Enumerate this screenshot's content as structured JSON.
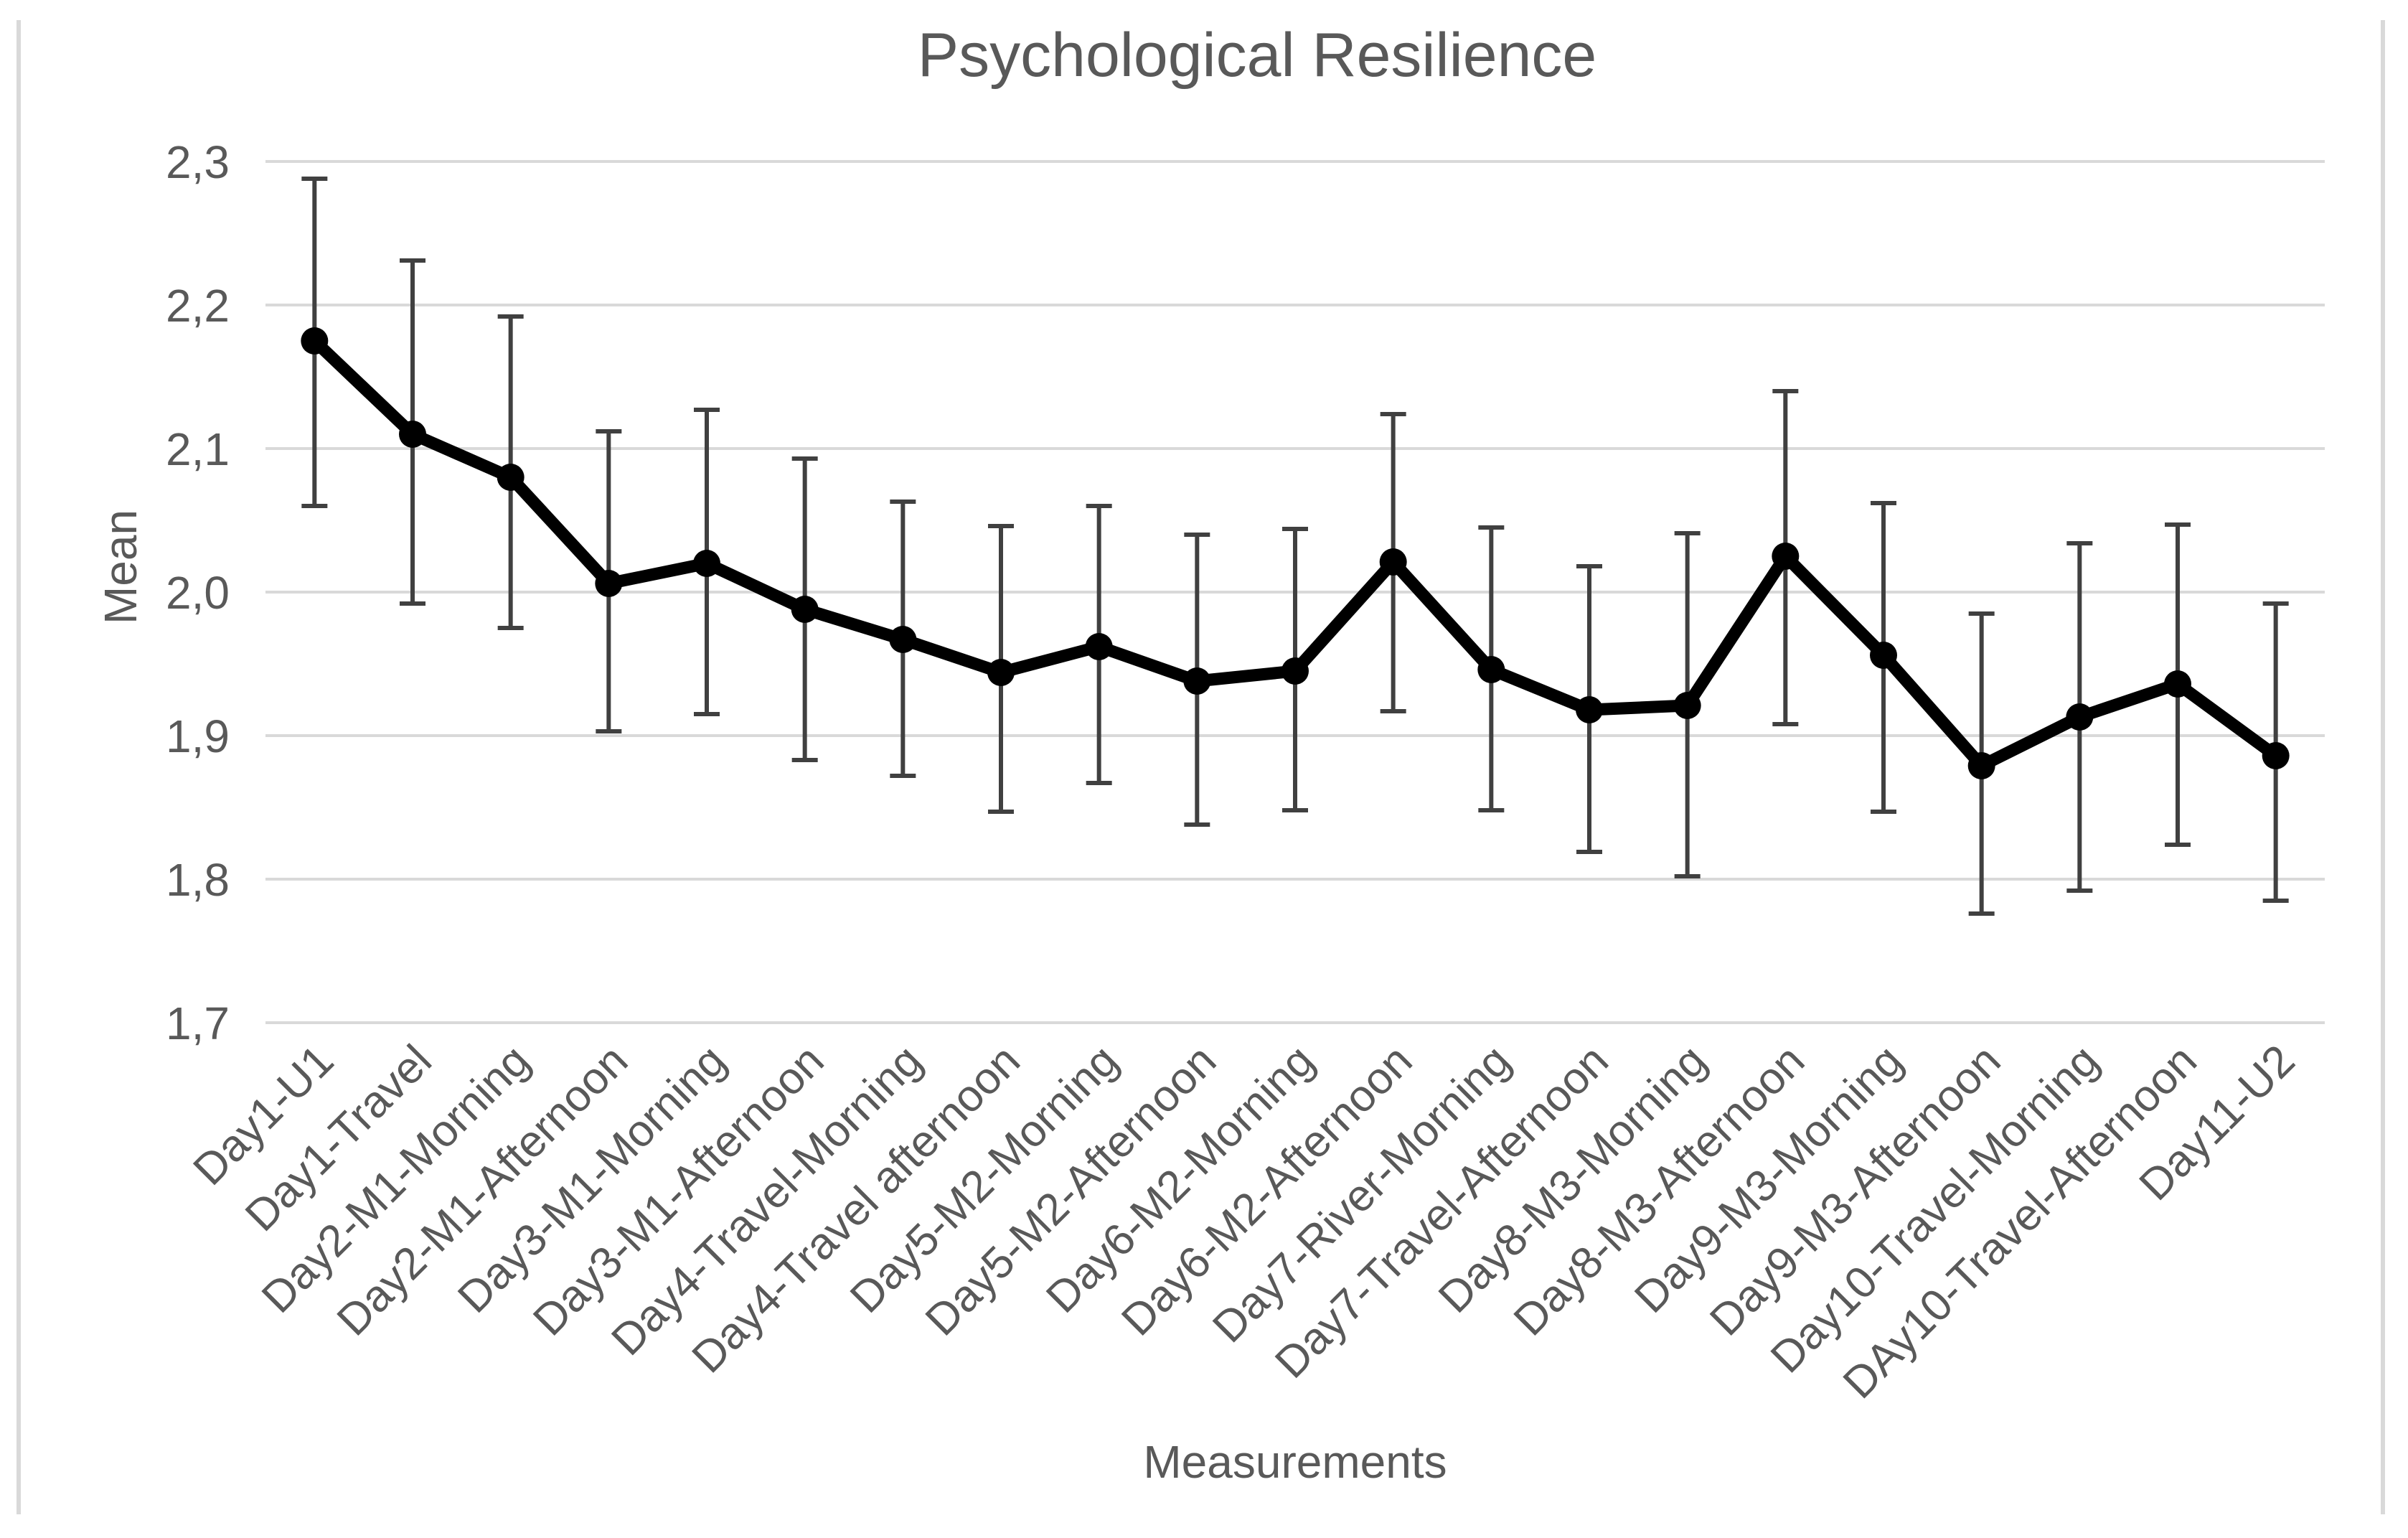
{
  "chart_data": {
    "type": "line",
    "title": "Psychological Resilience",
    "xlabel": "Measurements",
    "ylabel": "Mean",
    "ylim": [
      1.7,
      2.3
    ],
    "ytick_step": 0.1,
    "ytick_labels": [
      "2,3",
      "2,2",
      "2,1",
      "2,0",
      "1,9",
      "1,8",
      "1,7"
    ],
    "decimal_separator": "comma",
    "grid": "horizontal",
    "legend": "none",
    "categories": [
      "Day1-U1",
      "Day1-Travel",
      "Day2-M1-Morning",
      "Day2-M1-Afternoon",
      "Day3-M1-Morning",
      "Day3-M1-Afternoon",
      "Day4-Travel-Morning",
      "Day4-Travel afternoon",
      "Day5-M2-Morning",
      "Day5-M2-Afternoon",
      "Day6-M2-Morning",
      "Day6-M2-Afternoon",
      "Day7-River-Morning",
      "Day7-Travel-Afternoon",
      "Day8-M3-Morning",
      "Day8-M3-Afternoon",
      "Day9-M3-Morning",
      "Day9-M3-Afternoon",
      "Day10-Travel-Morning",
      "DAy10-Travel-Afternoon",
      "Day11-U2"
    ],
    "series": [
      {
        "name": "Mean",
        "marker": "circle",
        "values": [
          2.175,
          2.11,
          2.08,
          2.006,
          2.02,
          1.988,
          1.967,
          1.944,
          1.962,
          1.938,
          1.945,
          2.021,
          1.946,
          1.918,
          1.921,
          2.025,
          1.956,
          1.879,
          1.913,
          1.936,
          1.886
        ],
        "error_low": [
          2.06,
          1.992,
          1.975,
          1.903,
          1.915,
          1.883,
          1.872,
          1.847,
          1.867,
          1.838,
          1.848,
          1.917,
          1.848,
          1.819,
          1.802,
          1.908,
          1.847,
          1.776,
          1.792,
          1.824,
          1.785
        ],
        "error_high": [
          2.288,
          2.231,
          2.192,
          2.112,
          2.127,
          2.093,
          2.063,
          2.046,
          2.06,
          2.04,
          2.044,
          2.124,
          2.045,
          2.018,
          2.041,
          2.14,
          2.062,
          1.985,
          2.034,
          2.047,
          1.992
        ]
      }
    ],
    "colors": {
      "line": "#000000",
      "marker": "#000000",
      "error_bar": "#404040",
      "gridline": "#d9d9d9",
      "text": "#595959",
      "frame": "#d9d9d9",
      "background": "#ffffff"
    }
  }
}
